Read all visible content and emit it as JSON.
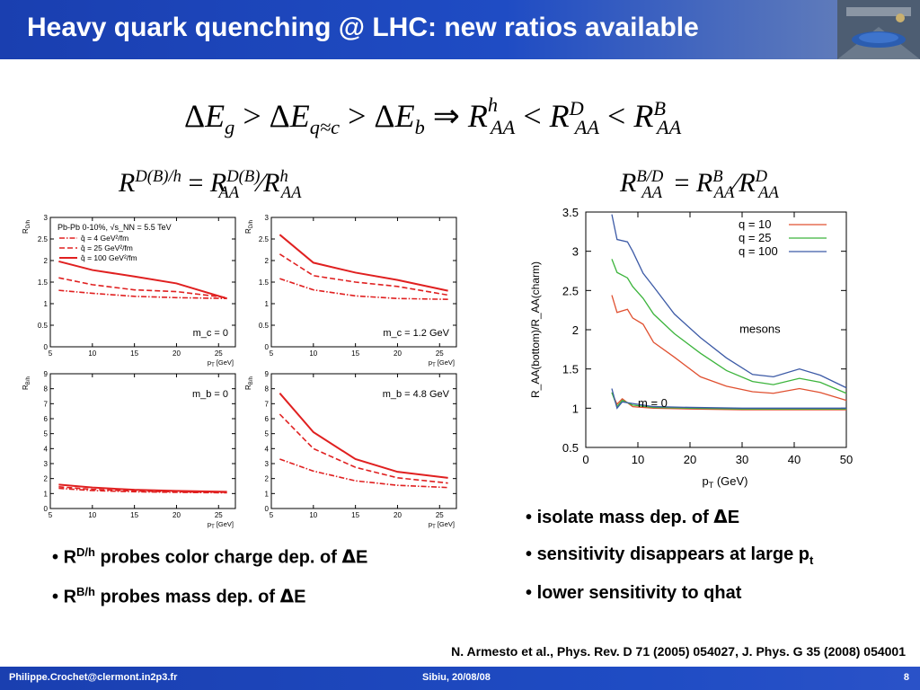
{
  "slide": {
    "title": "Heavy quark quenching @ LHC: new ratios available",
    "reference": "N. Armesto et al., Phys. Rev. D 71 (2005) 054027, J. Phys. G 35 (2008) 054001",
    "footer": {
      "email": "Philippe.Crochet@clermont.in2p3.fr",
      "event": "Sibiu, 20/08/08",
      "page": "8"
    }
  },
  "bullets_left": [
    {
      "prefix": "R",
      "sup": "D/h",
      "text": " probes color charge dep. of ",
      "delta": "Δ",
      "end": "E"
    },
    {
      "prefix": "R",
      "sup": "B/h",
      "text": " probes mass dep. of ",
      "delta": "Δ",
      "end": "E"
    }
  ],
  "bullets_right": [
    {
      "text": "isolate mass dep. of ",
      "delta": "Δ",
      "end": "E"
    },
    {
      "text": "sensitivity disappears at large p",
      "sub": "t"
    },
    {
      "text": "lower sensitivity to qhat"
    }
  ],
  "chart_data": [
    {
      "type": "line",
      "panel": "R_D/h, m_c = 0",
      "ylabel": "R_D/h",
      "xlabel": "p_T [GeV]",
      "xlim": [
        5,
        27
      ],
      "ylim": [
        0,
        3
      ],
      "xticks": [
        5,
        10,
        15,
        20,
        25
      ],
      "yticks": [
        0,
        0.5,
        1,
        1.5,
        2,
        2.5,
        3
      ],
      "annotation": "m_c = 0",
      "legend_header": "Pb-Pb 0-10%, √s_NN = 5.5 TeV",
      "series": [
        {
          "name": "q̂ = 4 GeV²/fm",
          "style": "dashdot",
          "x": [
            6,
            10,
            15,
            20,
            26
          ],
          "values": [
            1.31,
            1.24,
            1.17,
            1.14,
            1.12
          ]
        },
        {
          "name": "q̂ = 25 GeV²/fm",
          "style": "dash",
          "x": [
            6,
            10,
            15,
            20,
            26
          ],
          "values": [
            1.6,
            1.44,
            1.32,
            1.28,
            1.14
          ]
        },
        {
          "name": "q̂ = 100 GeV²/fm",
          "style": "solid",
          "x": [
            6,
            10,
            15,
            20,
            26
          ],
          "values": [
            1.98,
            1.78,
            1.63,
            1.47,
            1.12
          ]
        }
      ]
    },
    {
      "type": "line",
      "panel": "R_D/h, m_c = 1.2 GeV",
      "ylabel": "R_D/h",
      "xlabel": "p_T [GeV]",
      "xlim": [
        5,
        27
      ],
      "ylim": [
        0,
        3
      ],
      "xticks": [
        5,
        10,
        15,
        20,
        25
      ],
      "yticks": [
        0,
        0.5,
        1,
        1.5,
        2,
        2.5,
        3
      ],
      "annotation": "m_c = 1.2 GeV",
      "series": [
        {
          "name": "q̂ = 4 GeV²/fm",
          "style": "dashdot",
          "x": [
            6,
            10,
            15,
            20,
            26
          ],
          "values": [
            1.58,
            1.32,
            1.18,
            1.12,
            1.1
          ]
        },
        {
          "name": "q̂ = 25 GeV²/fm",
          "style": "dash",
          "x": [
            6,
            10,
            15,
            20,
            26
          ],
          "values": [
            2.15,
            1.65,
            1.5,
            1.4,
            1.2
          ]
        },
        {
          "name": "q̂ = 100 GeV²/fm",
          "style": "solid",
          "x": [
            6,
            10,
            15,
            20,
            26
          ],
          "values": [
            2.6,
            1.95,
            1.72,
            1.55,
            1.3
          ]
        }
      ]
    },
    {
      "type": "line",
      "panel": "R_B/h, m_b = 0",
      "ylabel": "R_B/h",
      "xlabel": "p_T [GeV]",
      "xlim": [
        5,
        27
      ],
      "ylim": [
        0,
        9
      ],
      "xticks": [
        5,
        10,
        15,
        20,
        25
      ],
      "yticks": [
        0,
        1,
        2,
        3,
        4,
        5,
        6,
        7,
        8,
        9
      ],
      "annotation": "m_b = 0",
      "series": [
        {
          "name": "q̂ = 4 GeV²/fm",
          "style": "dashdot",
          "x": [
            6,
            10,
            15,
            20,
            26
          ],
          "values": [
            1.35,
            1.2,
            1.12,
            1.08,
            1.05
          ]
        },
        {
          "name": "q̂ = 25 GeV²/fm",
          "style": "dash",
          "x": [
            6,
            10,
            15,
            20,
            26
          ],
          "values": [
            1.45,
            1.28,
            1.17,
            1.12,
            1.08
          ]
        },
        {
          "name": "q̂ = 100 GeV²/fm",
          "style": "solid",
          "x": [
            6,
            10,
            15,
            20,
            26
          ],
          "values": [
            1.6,
            1.4,
            1.25,
            1.18,
            1.12
          ]
        }
      ]
    },
    {
      "type": "line",
      "panel": "R_B/h, m_b = 4.8 GeV",
      "ylabel": "R_B/h",
      "xlabel": "p_T [GeV]",
      "xlim": [
        5,
        27
      ],
      "ylim": [
        0,
        9
      ],
      "xticks": [
        5,
        10,
        15,
        20,
        25
      ],
      "yticks": [
        0,
        1,
        2,
        3,
        4,
        5,
        6,
        7,
        8,
        9
      ],
      "annotation": "m_b = 4.8 GeV",
      "series": [
        {
          "name": "q̂ = 4 GeV²/fm",
          "style": "dashdot",
          "x": [
            6,
            10,
            15,
            20,
            26
          ],
          "values": [
            3.3,
            2.5,
            1.85,
            1.55,
            1.4
          ]
        },
        {
          "name": "q̂ = 25 GeV²/fm",
          "style": "dash",
          "x": [
            6,
            10,
            15,
            20,
            26
          ],
          "values": [
            6.3,
            4.0,
            2.75,
            2.05,
            1.7
          ]
        },
        {
          "name": "q̂ = 100 GeV²/fm",
          "style": "solid",
          "x": [
            6,
            10,
            15,
            20,
            26
          ],
          "values": [
            7.7,
            5.1,
            3.3,
            2.45,
            2.05
          ]
        }
      ]
    },
    {
      "type": "line",
      "panel": "R_AA(bottom)/R_AA(charm)",
      "ylabel": "R_AA(bottom)/R_AA(charm)",
      "xlabel": "p_T (GeV)",
      "xlim": [
        0,
        50
      ],
      "ylim": [
        0.5,
        3.5
      ],
      "xticks": [
        0,
        10,
        20,
        30,
        40,
        50
      ],
      "yticks": [
        0.5,
        1,
        1.5,
        2,
        2.5,
        3,
        3.5
      ],
      "annotations": [
        "mesons",
        "m = 0"
      ],
      "legend": "top-right",
      "series": [
        {
          "name": "q = 10",
          "color": "#e05030",
          "x": [
            5,
            6,
            8,
            9,
            11,
            13,
            17,
            22,
            27,
            32,
            36,
            41,
            45,
            50
          ],
          "values": [
            2.44,
            2.22,
            2.26,
            2.15,
            2.07,
            1.84,
            1.65,
            1.4,
            1.28,
            1.21,
            1.19,
            1.25,
            1.2,
            1.1
          ]
        },
        {
          "name": "q = 25",
          "color": "#3cb43c",
          "x": [
            5,
            6,
            8,
            9,
            11,
            13,
            17,
            22,
            27,
            32,
            36,
            41,
            45,
            50
          ],
          "values": [
            2.9,
            2.73,
            2.66,
            2.55,
            2.4,
            2.2,
            1.95,
            1.7,
            1.48,
            1.34,
            1.3,
            1.38,
            1.33,
            1.19
          ]
        },
        {
          "name": "q = 100",
          "color": "#3c5aa6",
          "x": [
            5,
            6,
            8,
            9,
            11,
            13,
            17,
            22,
            27,
            32,
            36,
            41,
            45,
            50
          ],
          "values": [
            3.47,
            3.15,
            3.12,
            3.0,
            2.72,
            2.55,
            2.2,
            1.9,
            1.64,
            1.43,
            1.4,
            1.5,
            1.42,
            1.26
          ]
        },
        {
          "name": "m = 0 (q = 10)",
          "color": "#e05030",
          "x": [
            5,
            6,
            7,
            9,
            13,
            20,
            30,
            40,
            50
          ],
          "values": [
            1.2,
            1.05,
            1.12,
            1.02,
            1.0,
            0.99,
            0.98,
            0.98,
            0.98
          ]
        },
        {
          "name": "m = 0 (q = 25)",
          "color": "#3cb43c",
          "x": [
            5,
            6,
            7,
            9,
            13,
            20,
            30,
            40,
            50
          ],
          "values": [
            1.2,
            1.02,
            1.1,
            1.04,
            1.01,
            1.0,
            0.99,
            0.99,
            0.99
          ]
        },
        {
          "name": "m = 0 (q = 100)",
          "color": "#3c5aa6",
          "x": [
            5,
            6,
            7,
            9,
            13,
            20,
            30,
            40,
            50
          ],
          "values": [
            1.25,
            1.0,
            1.08,
            1.06,
            1.02,
            1.01,
            1.0,
            1.0,
            1.0
          ]
        }
      ]
    }
  ]
}
